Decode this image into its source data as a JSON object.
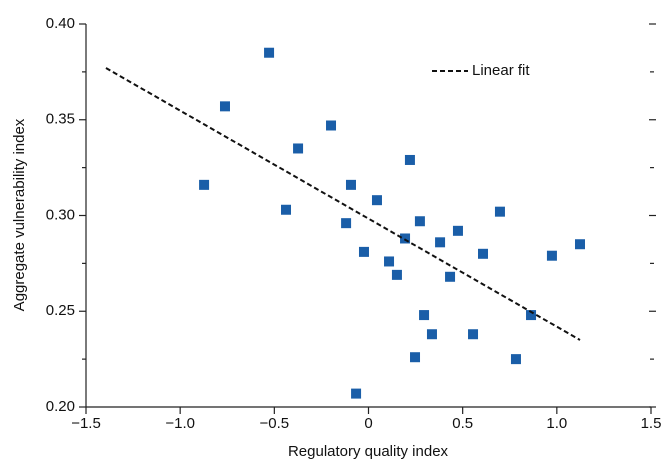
{
  "chart_data": {
    "type": "scatter",
    "xlabel": "Regulatory quality index",
    "ylabel": "Aggregate vulnerability index",
    "xlim": [
      -1.5,
      1.5
    ],
    "ylim": [
      0.2,
      0.4
    ],
    "xticks": [
      {
        "value": -1.5,
        "label": "−1.5"
      },
      {
        "value": -1.0,
        "label": "−1.0"
      },
      {
        "value": -0.5,
        "label": "−0.5"
      },
      0,
      0.5,
      {
        "value": 1.0,
        "label": "1.0"
      },
      1.5
    ],
    "yticks": [
      {
        "value": 0.2,
        "label": "0.20"
      },
      {
        "value": 0.25,
        "label": "0.25"
      },
      {
        "value": 0.3,
        "label": "0.30"
      },
      {
        "value": 0.35,
        "label": "0.35"
      },
      {
        "value": 0.4,
        "label": "0.40"
      }
    ],
    "yminorticks": [
      0.225,
      0.275,
      0.325,
      0.375
    ],
    "series": [
      {
        "color": "#1a5ea8",
        "x": [
          -0.528,
          -0.762,
          -0.873,
          -0.374,
          -0.438,
          -0.199,
          -0.093,
          -0.119,
          0.045,
          -0.024,
          0.22,
          0.273,
          0.194,
          0.38,
          0.475,
          0.109,
          0.151,
          0.433,
          0.608,
          0.698,
          0.974,
          1.123,
          0.295,
          0.337,
          0.555,
          0.863,
          0.247,
          0.783,
          -0.066
        ],
        "values": [
          0.385,
          0.357,
          0.316,
          0.335,
          0.303,
          0.347,
          0.316,
          0.296,
          0.308,
          0.281,
          0.329,
          0.297,
          0.288,
          0.286,
          0.292,
          0.276,
          0.269,
          0.268,
          0.28,
          0.302,
          0.279,
          0.285,
          0.248,
          0.238,
          0.238,
          0.248,
          0.226,
          0.225,
          0.207
        ]
      },
      {
        "name": "Linear fit",
        "type": "line",
        "color": "#111111",
        "dashed": true,
        "x": [
          -1.394,
          1.123
        ],
        "values": [
          0.377,
          0.235
        ]
      }
    ],
    "legend": "top-right"
  }
}
